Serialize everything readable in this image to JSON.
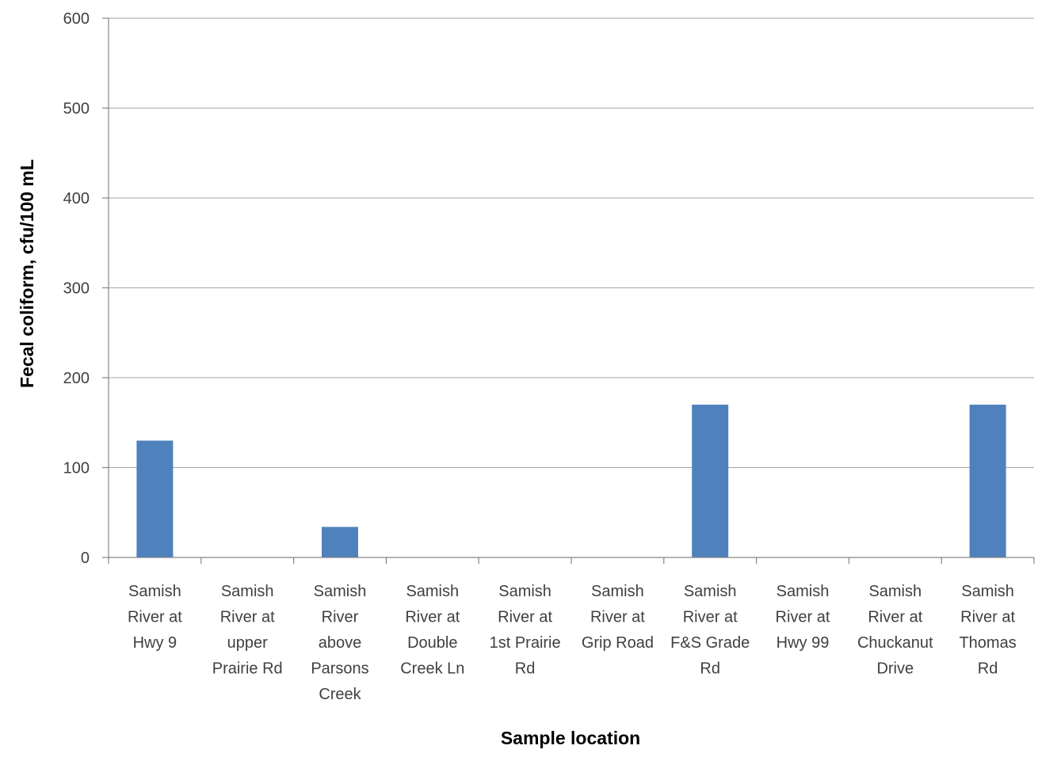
{
  "chart_data": {
    "type": "bar",
    "title": "",
    "xlabel": "Sample location",
    "ylabel": "Fecal coliform, cfu/100 mL",
    "ylim": [
      0,
      600
    ],
    "yticks": [
      "0",
      "100",
      "200",
      "300",
      "400",
      "500",
      "600"
    ],
    "grid": true,
    "legend": "none",
    "bar_color": "#4f81bd",
    "categories": [
      [
        "Samish",
        "River at",
        "Hwy 9"
      ],
      [
        "Samish",
        "River at",
        "upper",
        "Prairie Rd"
      ],
      [
        "Samish",
        "River",
        "above",
        "Parsons",
        "Creek"
      ],
      [
        "Samish",
        "River at",
        "Double",
        "Creek Ln"
      ],
      [
        "Samish",
        "River at",
        "1st Prairie",
        "Rd"
      ],
      [
        "Samish",
        "River at",
        "Grip Road"
      ],
      [
        "Samish",
        "River at",
        "F&S Grade",
        "Rd"
      ],
      [
        "Samish",
        "River at",
        "Hwy 99"
      ],
      [
        "Samish",
        "River at",
        "Chuckanut",
        "Drive"
      ],
      [
        "Samish",
        "River at",
        "Thomas",
        "Rd"
      ]
    ],
    "values": [
      130,
      0,
      34,
      0,
      0,
      0,
      170,
      0,
      0,
      170
    ]
  }
}
